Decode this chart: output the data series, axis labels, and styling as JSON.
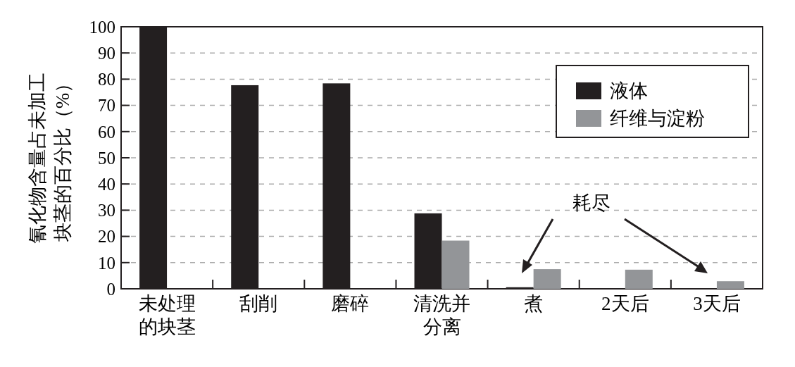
{
  "chart_data": {
    "type": "bar",
    "ylabel": "氰化物含量占未加工块茎的百分比（%）",
    "categories": [
      "未处理的块茎",
      "刮削",
      "磨碎",
      "清洗并分离",
      "煮",
      "2天后",
      "3天后"
    ],
    "series": [
      {
        "name": "液体",
        "color": "#231f20",
        "values": [
          100,
          77.7,
          78.4,
          28.8,
          0.6,
          null,
          null
        ]
      },
      {
        "name": "纤维与淀粉",
        "color": "#939598",
        "values": [
          null,
          null,
          null,
          18.4,
          7.5,
          7.3,
          2.9
        ]
      }
    ],
    "ylim": [
      0,
      100
    ],
    "yticks": [
      0,
      10,
      20,
      30,
      40,
      50,
      60,
      70,
      80,
      90,
      100
    ],
    "grid": "y",
    "legend": "top right",
    "annotations": [
      "耗尽"
    ]
  }
}
